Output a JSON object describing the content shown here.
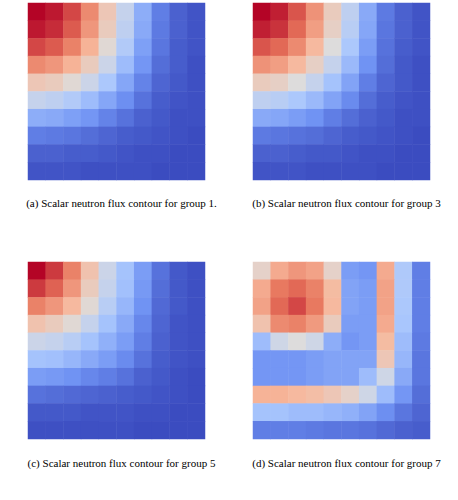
{
  "chart_data": [
    {
      "type": "heatmap",
      "title": "(a) Scalar neutron flux contour for group 1.",
      "tick_labels": false,
      "zlim": [
        0,
        1
      ],
      "cells": [
        [
          1.0,
          0.97,
          0.9,
          0.78,
          0.6,
          0.42,
          0.25,
          0.12,
          0.05,
          0.02
        ],
        [
          0.97,
          0.94,
          0.87,
          0.75,
          0.58,
          0.4,
          0.24,
          0.11,
          0.05,
          0.02
        ],
        [
          0.9,
          0.87,
          0.8,
          0.68,
          0.52,
          0.36,
          0.21,
          0.1,
          0.04,
          0.02
        ],
        [
          0.78,
          0.75,
          0.68,
          0.58,
          0.44,
          0.3,
          0.18,
          0.08,
          0.04,
          0.01
        ],
        [
          0.6,
          0.58,
          0.52,
          0.44,
          0.34,
          0.23,
          0.13,
          0.06,
          0.03,
          0.01
        ],
        [
          0.42,
          0.4,
          0.36,
          0.3,
          0.23,
          0.16,
          0.09,
          0.04,
          0.02,
          0.01
        ],
        [
          0.25,
          0.24,
          0.21,
          0.18,
          0.13,
          0.09,
          0.05,
          0.03,
          0.01,
          0.01
        ],
        [
          0.12,
          0.11,
          0.1,
          0.08,
          0.06,
          0.04,
          0.03,
          0.02,
          0.01,
          0
        ],
        [
          0.05,
          0.05,
          0.04,
          0.04,
          0.03,
          0.02,
          0.01,
          0.01,
          0,
          0
        ],
        [
          0.02,
          0.02,
          0.02,
          0.01,
          0.01,
          0.01,
          0.01,
          0,
          0,
          0
        ]
      ]
    },
    {
      "type": "heatmap",
      "title": "(b) Scalar neutron flux contour for group 3",
      "tick_labels": false,
      "zlim": [
        0,
        1
      ],
      "cells": [
        [
          1.0,
          0.96,
          0.88,
          0.76,
          0.58,
          0.4,
          0.24,
          0.11,
          0.05,
          0.02
        ],
        [
          0.96,
          0.93,
          0.85,
          0.73,
          0.56,
          0.38,
          0.23,
          0.1,
          0.05,
          0.02
        ],
        [
          0.88,
          0.85,
          0.78,
          0.66,
          0.5,
          0.34,
          0.2,
          0.09,
          0.04,
          0.02
        ],
        [
          0.76,
          0.73,
          0.66,
          0.56,
          0.42,
          0.29,
          0.17,
          0.08,
          0.03,
          0.01
        ],
        [
          0.58,
          0.56,
          0.5,
          0.42,
          0.32,
          0.22,
          0.12,
          0.06,
          0.03,
          0.01
        ],
        [
          0.4,
          0.38,
          0.34,
          0.29,
          0.22,
          0.15,
          0.08,
          0.04,
          0.02,
          0.01
        ],
        [
          0.24,
          0.23,
          0.2,
          0.17,
          0.12,
          0.08,
          0.05,
          0.03,
          0.01,
          0.01
        ],
        [
          0.11,
          0.1,
          0.09,
          0.08,
          0.06,
          0.04,
          0.03,
          0.02,
          0.01,
          0
        ],
        [
          0.05,
          0.05,
          0.04,
          0.03,
          0.03,
          0.02,
          0.01,
          0.01,
          0,
          0
        ],
        [
          0.02,
          0.02,
          0.02,
          0.01,
          0.01,
          0.01,
          0.01,
          0,
          0,
          0
        ]
      ]
    },
    {
      "type": "heatmap",
      "title": "(c) Scalar neutron flux contour for group 5",
      "tick_labels": false,
      "zlim": [
        0,
        1
      ],
      "cells": [
        [
          1.0,
          0.92,
          0.8,
          0.62,
          0.44,
          0.32,
          0.2,
          0.09,
          0.03,
          0.01
        ],
        [
          0.92,
          0.86,
          0.75,
          0.58,
          0.42,
          0.31,
          0.19,
          0.08,
          0.03,
          0.01
        ],
        [
          0.8,
          0.75,
          0.66,
          0.52,
          0.38,
          0.28,
          0.17,
          0.07,
          0.03,
          0.01
        ],
        [
          0.62,
          0.58,
          0.52,
          0.42,
          0.32,
          0.24,
          0.14,
          0.06,
          0.02,
          0.01
        ],
        [
          0.44,
          0.42,
          0.38,
          0.32,
          0.26,
          0.2,
          0.12,
          0.05,
          0.02,
          0.01
        ],
        [
          0.32,
          0.31,
          0.28,
          0.24,
          0.2,
          0.15,
          0.09,
          0.04,
          0.02,
          0.01
        ],
        [
          0.2,
          0.19,
          0.17,
          0.14,
          0.12,
          0.09,
          0.05,
          0.03,
          0.01,
          0
        ],
        [
          0.09,
          0.08,
          0.07,
          0.06,
          0.05,
          0.04,
          0.03,
          0.02,
          0.01,
          0
        ],
        [
          0.03,
          0.03,
          0.03,
          0.02,
          0.02,
          0.02,
          0.01,
          0.01,
          0,
          0
        ],
        [
          0.01,
          0.01,
          0.01,
          0.01,
          0.01,
          0.01,
          0,
          0,
          0,
          0
        ]
      ]
    },
    {
      "type": "heatmap",
      "title": "(d) Scalar neutron flux contour for group 7",
      "tick_labels": false,
      "zlim": [
        0,
        1
      ],
      "cells": [
        [
          0.55,
          0.7,
          0.75,
          0.72,
          0.55,
          0.2,
          0.18,
          0.7,
          0.35,
          0.12
        ],
        [
          0.7,
          0.82,
          0.85,
          0.8,
          0.65,
          0.22,
          0.2,
          0.72,
          0.35,
          0.12
        ],
        [
          0.72,
          0.85,
          0.9,
          0.82,
          0.66,
          0.22,
          0.2,
          0.72,
          0.34,
          0.12
        ],
        [
          0.62,
          0.78,
          0.8,
          0.74,
          0.58,
          0.2,
          0.2,
          0.7,
          0.33,
          0.12
        ],
        [
          0.3,
          0.45,
          0.5,
          0.45,
          0.25,
          0.18,
          0.2,
          0.65,
          0.3,
          0.11
        ],
        [
          0.18,
          0.18,
          0.18,
          0.2,
          0.22,
          0.22,
          0.22,
          0.6,
          0.28,
          0.1
        ],
        [
          0.18,
          0.18,
          0.18,
          0.2,
          0.22,
          0.22,
          0.3,
          0.45,
          0.24,
          0.1
        ],
        [
          0.68,
          0.68,
          0.66,
          0.64,
          0.6,
          0.55,
          0.45,
          0.3,
          0.18,
          0.08
        ],
        [
          0.32,
          0.32,
          0.3,
          0.3,
          0.28,
          0.26,
          0.22,
          0.16,
          0.1,
          0.06
        ],
        [
          0.12,
          0.12,
          0.12,
          0.11,
          0.1,
          0.1,
          0.09,
          0.07,
          0.05,
          0.04
        ]
      ]
    }
  ]
}
